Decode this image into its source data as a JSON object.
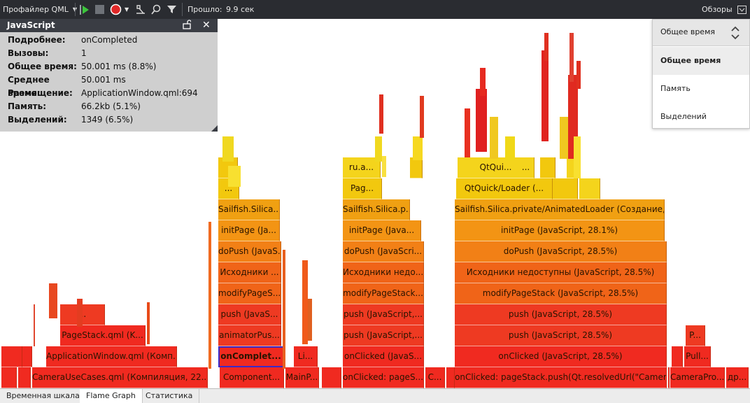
{
  "toolbar": {
    "profiler_label": "Профайлер QML",
    "elapsed_label": "Прошло:",
    "elapsed_value": "9.9 сек",
    "views_label": "Обзоры"
  },
  "details": {
    "title": "JavaScript",
    "rows": [
      {
        "key": "Подробнее:",
        "value": "onCompleted"
      },
      {
        "key": "Вызовы:",
        "value": "1"
      },
      {
        "key": "Общее время:",
        "value": "50.001 ms (8.8%)"
      },
      {
        "key": "Среднее время:",
        "value": "50.001 ms"
      },
      {
        "key": "Размещение:",
        "value": "ApplicationWindow.qml:694"
      },
      {
        "key": "Память:",
        "value": "66.2kb (5.1%)"
      },
      {
        "key": "Выделений:",
        "value": "1349 (6.5%)"
      }
    ]
  },
  "mode_menu": {
    "selected": "Общее время",
    "options": [
      "Общее время",
      "Память",
      "Выделений"
    ]
  },
  "tabs": [
    "Временная шкала",
    "Flame Graph",
    "Статистика"
  ],
  "active_tab": "Flame Graph",
  "colors": {
    "toolbar_bg": "#2a2c31",
    "details_bg": "#cfcfcf",
    "selection": "#3a2ac8",
    "run_green": "#3cc43c",
    "record_red": "#e02828"
  },
  "flame": {
    "labeled_blocks": [
      {
        "text": "CameraUseCases.qml (Компиляция, 22..."
      },
      {
        "text": "Component..."
      },
      {
        "text": "MainP..."
      },
      {
        "text": "onClicked: pageS..."
      },
      {
        "text": "C..."
      },
      {
        "text": "onClicked: pageStack.push(Qt.resolvedUrl(\"Camera..."
      },
      {
        "text": "CameraPro..."
      },
      {
        "text": "др..."
      },
      {
        "text": "ApplicationWindow.qml (Комп..."
      },
      {
        "text": "onComplet..."
      },
      {
        "text": "Li..."
      },
      {
        "text": "onClicked (JavaS..."
      },
      {
        "text": "onClicked (JavaScript, 28.5%)"
      },
      {
        "text": "Pull..."
      },
      {
        "text": "PageStack.qml (K..."
      },
      {
        "text": "animatorPus..."
      },
      {
        "text": "push (JavaScript,..."
      },
      {
        "text": "push (JavaScript, 28.5%)"
      },
      {
        "text": "P..."
      },
      {
        "text": "..."
      },
      {
        "text": "push (JavaS..."
      },
      {
        "text": "push (JavaScript,..."
      },
      {
        "text": "push (JavaScript, 28.5%)"
      },
      {
        "text": "modifyPageS..."
      },
      {
        "text": "modifyPageStack..."
      },
      {
        "text": "modifyPageStack (JavaScript, 28.5%)"
      },
      {
        "text": "Исходники ..."
      },
      {
        "text": "Исходники недо..."
      },
      {
        "text": "Исходники недоступны (JavaScript, 28.5%)"
      },
      {
        "text": "doPush (JavaS..."
      },
      {
        "text": "doPush (JavaScri..."
      },
      {
        "text": "doPush (JavaScript, 28.5%)"
      },
      {
        "text": "initPage (Ja..."
      },
      {
        "text": "initPage (Java..."
      },
      {
        "text": "initPage (JavaScript, 28.1%)"
      },
      {
        "text": "Sailfish.Silica..."
      },
      {
        "text": "Sailfish.Silica.p..."
      },
      {
        "text": "Sailfish.Silica.private/AnimatedLoader (Создание, ..."
      },
      {
        "text": "..."
      },
      {
        "text": "Pag..."
      },
      {
        "text": "QtQuick/Loader (..."
      },
      {
        "text": "ru.a..."
      },
      {
        "text": "QtQui..."
      },
      {
        "text": "..."
      }
    ]
  }
}
